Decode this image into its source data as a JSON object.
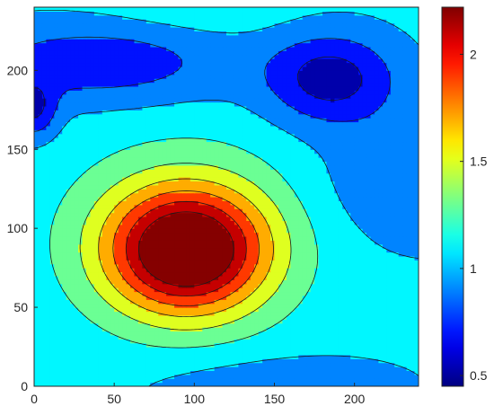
{
  "chart_data": {
    "type": "contour",
    "title": "",
    "xlabel": "",
    "ylabel": "",
    "xlim": [
      0,
      240
    ],
    "ylim": [
      0,
      240
    ],
    "x_ticks": [
      0,
      50,
      100,
      150,
      200
    ],
    "y_ticks": [
      0,
      50,
      100,
      150,
      200
    ],
    "x_tick_labels": [
      "0",
      "50",
      "100",
      "150",
      "200"
    ],
    "y_tick_labels": [
      "0",
      "50",
      "100",
      "150",
      "200"
    ],
    "colormap": "jet",
    "colorbar": {
      "range": [
        0.45,
        2.22
      ],
      "ticks": [
        0.5,
        1,
        1.5,
        2
      ],
      "tick_labels": [
        "0.5",
        "1",
        "1.5",
        "2"
      ],
      "placement": "right"
    },
    "contour_levels": [
      0.6,
      0.8,
      1.0,
      1.2,
      1.4,
      1.6,
      1.8,
      2.0,
      2.2
    ],
    "features": [
      {
        "kind": "maximum",
        "x": 95,
        "y": 85,
        "value": 2.22
      },
      {
        "kind": "minimum",
        "x": 180,
        "y": 195,
        "value": 0.5
      },
      {
        "kind": "minimum",
        "x": 0,
        "y": 175,
        "value": 0.5
      }
    ],
    "grid": false
  }
}
